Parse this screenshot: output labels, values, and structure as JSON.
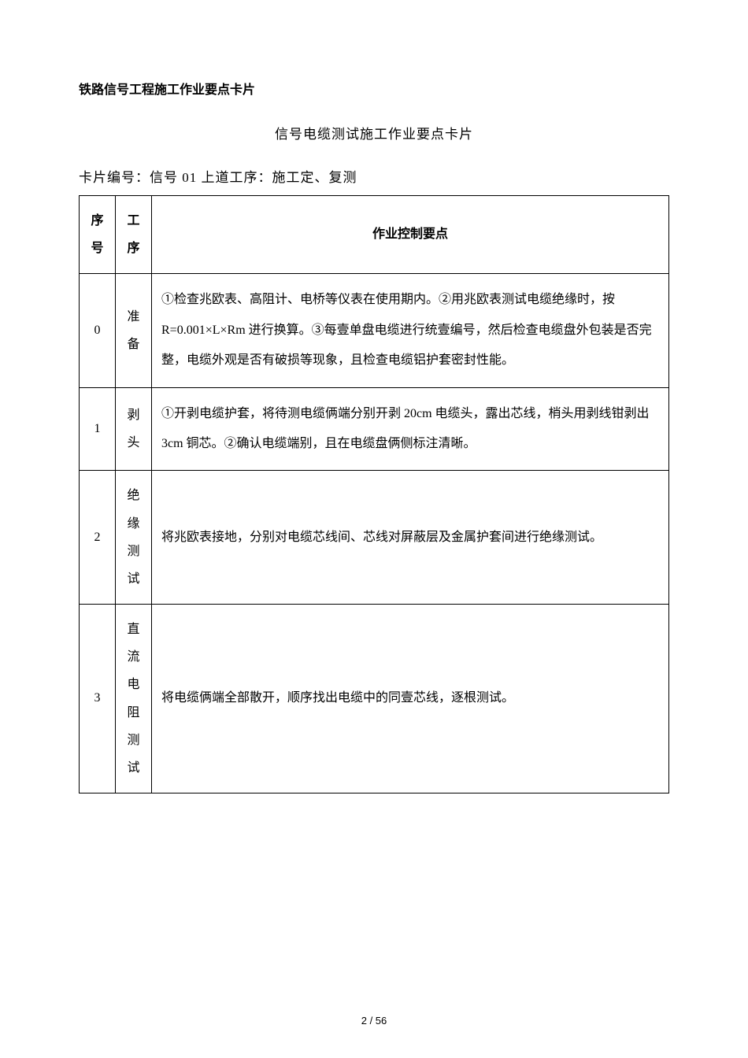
{
  "header": "铁路信号工程施工作业要点卡片",
  "title": "信号电缆测试施工作业要点卡片",
  "subtitle": "卡片编号：信号 01 上道工序：施工定、复测",
  "table": {
    "headers": {
      "seq": "序号",
      "step": "工序",
      "content": "作业控制要点"
    },
    "rows": [
      {
        "seq": "0",
        "step": "准备",
        "content": "①检查兆欧表、高阻计、电桥等仪表在使用期内。②用兆欧表测试电缆绝缘时，按 R=0.001×L×Rm 进行换算。③每壹单盘电缆进行统壹编号，然后检查电缆盘外包装是否完整，电缆外观是否有破损等现象，且检查电缆铝护套密封性能。"
      },
      {
        "seq": "1",
        "step": "剥头",
        "content": "①开剥电缆护套，将待测电缆俩端分别开剥 20cm 电缆头，露出芯线，梢头用剥线钳剥出 3cm 铜芯。②确认电缆端别，且在电缆盘俩侧标注清晰。"
      },
      {
        "seq": "2",
        "step": "绝缘测试",
        "content": "将兆欧表接地，分别对电缆芯线间、芯线对屏蔽层及金属护套间进行绝缘测试。"
      },
      {
        "seq": "3",
        "step": "直流电阻测试",
        "content": "将电缆俩端全部散开，顺序找出电缆中的同壹芯线，逐根测试。"
      }
    ]
  },
  "footer": "2 / 56",
  "colors": {
    "text": "#000000",
    "background": "#ffffff",
    "border": "#000000"
  }
}
